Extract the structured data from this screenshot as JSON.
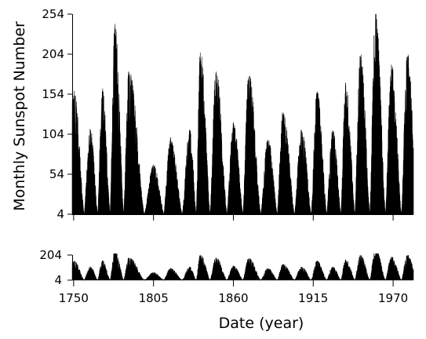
{
  "chart_data": [
    {
      "type": "area",
      "panel": "main",
      "title": "",
      "ylabel": "Monthly Sunspot Number",
      "xlim": [
        1749,
        1984
      ],
      "ylim": [
        4,
        254
      ],
      "yticks": [
        4,
        54,
        104,
        154,
        204,
        254
      ],
      "ytick_labels": [
        "4",
        "54",
        "104",
        "154",
        "204",
        "254"
      ],
      "grid": false,
      "series": [
        {
          "color": "#000000",
          "cycle_maxima": [
            {
              "year": 1750.3,
              "value": 158
            },
            {
              "year": 1761.5,
              "value": 107
            },
            {
              "year": 1769.7,
              "value": 158
            },
            {
              "year": 1778.4,
              "value": 238
            },
            {
              "year": 1788.1,
              "value": 180
            },
            {
              "year": 1805.2,
              "value": 62
            },
            {
              "year": 1816.4,
              "value": 96
            },
            {
              "year": 1829.9,
              "value": 106
            },
            {
              "year": 1837.2,
              "value": 206
            },
            {
              "year": 1848.1,
              "value": 180
            },
            {
              "year": 1860.1,
              "value": 116
            },
            {
              "year": 1870.6,
              "value": 176
            },
            {
              "year": 1883.9,
              "value": 96
            },
            {
              "year": 1894.1,
              "value": 129
            },
            {
              "year": 1907.0,
              "value": 108
            },
            {
              "year": 1917.6,
              "value": 154
            },
            {
              "year": 1928.4,
              "value": 109
            },
            {
              "year": 1937.4,
              "value": 165
            },
            {
              "year": 1947.5,
              "value": 201
            },
            {
              "year": 1957.9,
              "value": 254
            },
            {
              "year": 1968.9,
              "value": 187
            },
            {
              "year": 1979.9,
              "value": 201
            }
          ]
        }
      ]
    },
    {
      "type": "area",
      "panel": "overview",
      "title": "",
      "xlabel": "Date (year)",
      "xlim": [
        1749,
        1984
      ],
      "xticks": [
        1750,
        1805,
        1860,
        1915,
        1970
      ],
      "xtick_labels": [
        "1750",
        "1805",
        "1860",
        "1915",
        "1970"
      ],
      "ylim": [
        4,
        204
      ],
      "yticks": [
        4,
        204
      ],
      "ytick_labels": [
        "4",
        "204"
      ],
      "grid": false
    }
  ]
}
